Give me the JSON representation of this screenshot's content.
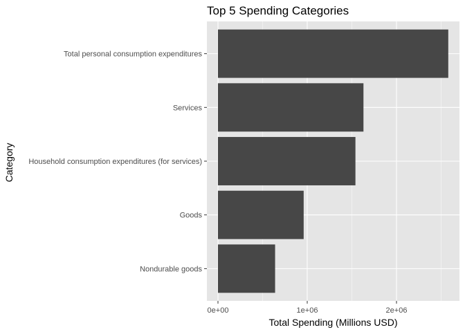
{
  "chart_data": {
    "type": "bar",
    "orientation": "horizontal",
    "title": "Top 5 Spending Categories",
    "xlabel": "Total Spending (Millions USD)",
    "ylabel": "Category",
    "categories": [
      "Total personal consumption expenditures",
      "Services",
      "Household consumption expenditures (for services)",
      "Goods",
      "Nondurable goods"
    ],
    "values": [
      2580000,
      1630000,
      1540000,
      960000,
      640000
    ],
    "xlim": [
      0,
      2700000
    ],
    "x_ticks": [
      0,
      1000000,
      2000000
    ],
    "x_tick_labels": [
      "0e+00",
      "1e+06",
      "2e+06"
    ],
    "grid": true,
    "colors": {
      "bar": "#474747",
      "panel_background": "#e5e5e5",
      "grid_major": "#ffffff",
      "text": "#000000",
      "tick_text": "#4d4d4d"
    }
  }
}
